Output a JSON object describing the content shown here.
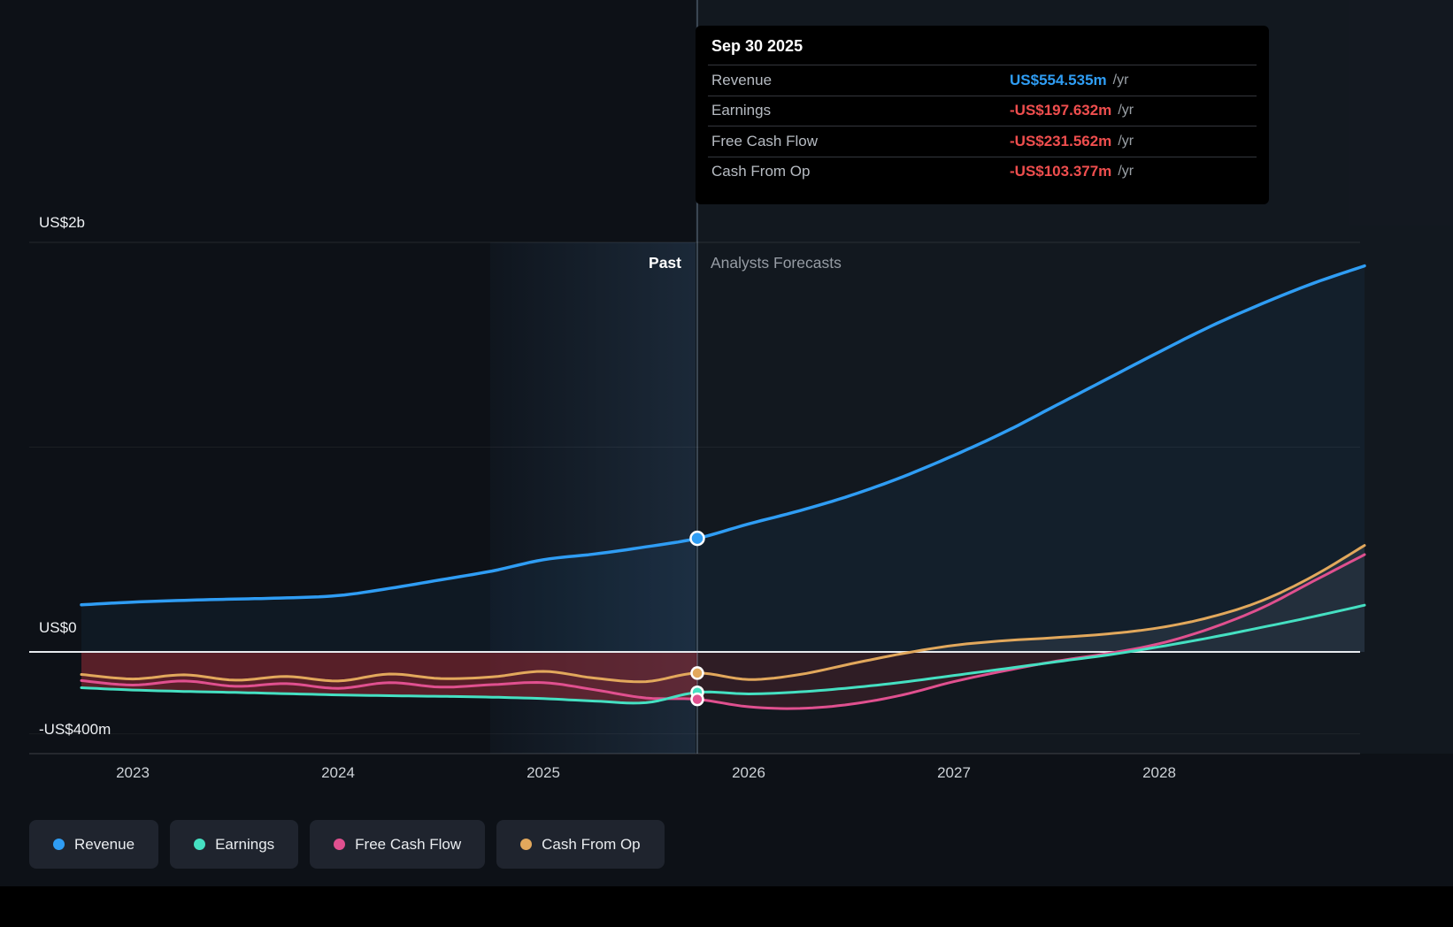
{
  "tooltip": {
    "title": "Sep 30 2025",
    "rows": [
      {
        "label": "Revenue",
        "value": "US$554.535m",
        "suffix": "/yr",
        "color": "#2f9df4"
      },
      {
        "label": "Earnings",
        "value": "-US$197.632m",
        "suffix": "/yr",
        "color": "#ef4e4e"
      },
      {
        "label": "Free Cash Flow",
        "value": "-US$231.562m",
        "suffix": "/yr",
        "color": "#ef4e4e"
      },
      {
        "label": "Cash From Op",
        "value": "-US$103.377m",
        "suffix": "/yr",
        "color": "#ef4e4e"
      }
    ]
  },
  "annotations": {
    "past": "Past",
    "forecast": "Analysts Forecasts"
  },
  "axis": {
    "y_labels": [
      {
        "text": "US$2b",
        "value": 2000
      },
      {
        "text": "US$0",
        "value": 0
      },
      {
        "text": "-US$400m",
        "value": -400
      }
    ],
    "x_labels": [
      "2023",
      "2024",
      "2025",
      "2026",
      "2027",
      "2028"
    ]
  },
  "legend": [
    {
      "label": "Revenue",
      "color": "#2f9df4"
    },
    {
      "label": "Earnings",
      "color": "#45e0c2"
    },
    {
      "label": "Free Cash Flow",
      "color": "#e0508f"
    },
    {
      "label": "Cash From Op",
      "color": "#e2a85c"
    }
  ],
  "chart_data": {
    "type": "line",
    "y_units": "US$ millions",
    "xlim": [
      2022.75,
      2029.0
    ],
    "ylim": [
      -400,
      2000
    ],
    "divider_x": 2025.75,
    "divider_label_left": "Past",
    "divider_label_right": "Analysts Forecasts",
    "highlight_band": [
      2024.75,
      2025.75
    ],
    "x": [
      2022.75,
      2023.0,
      2023.25,
      2023.5,
      2023.75,
      2024.0,
      2024.25,
      2024.5,
      2024.75,
      2025.0,
      2025.25,
      2025.5,
      2025.75,
      2026.0,
      2026.25,
      2026.5,
      2026.75,
      2027.0,
      2027.25,
      2027.5,
      2027.75,
      2028.0,
      2028.25,
      2028.5,
      2028.75,
      2029.0
    ],
    "series": [
      {
        "name": "Revenue",
        "color": "#2f9df4",
        "values": [
          230,
          243,
          252,
          258,
          264,
          275,
          310,
          352,
          395,
          450,
          478,
          513,
          554.535,
          625,
          690,
          765,
          855,
          960,
          1075,
          1205,
          1335,
          1465,
          1590,
          1700,
          1800,
          1885
        ]
      },
      {
        "name": "Earnings",
        "color": "#45e0c2",
        "values": [
          -175,
          -186,
          -193,
          -198,
          -204,
          -210,
          -214,
          -217,
          -221,
          -228,
          -240,
          -248,
          -197.632,
          -205,
          -195,
          -175,
          -148,
          -115,
          -82,
          -48,
          -15,
          25,
          70,
          120,
          172,
          228
        ]
      },
      {
        "name": "Free Cash Flow",
        "color": "#e0508f",
        "values": [
          -140,
          -162,
          -142,
          -168,
          -155,
          -178,
          -150,
          -172,
          -160,
          -150,
          -185,
          -225,
          -231.562,
          -268,
          -276,
          -255,
          -210,
          -145,
          -92,
          -45,
          -8,
          40,
          115,
          215,
          345,
          475
        ]
      },
      {
        "name": "Cash From Op",
        "color": "#e2a85c",
        "values": [
          -110,
          -132,
          -112,
          -138,
          -120,
          -142,
          -108,
          -130,
          -122,
          -95,
          -128,
          -145,
          -103.377,
          -135,
          -110,
          -58,
          -8,
          32,
          55,
          70,
          88,
          118,
          170,
          250,
          370,
          520
        ]
      }
    ],
    "markers": [
      {
        "series": "Revenue",
        "value": 554.535
      },
      {
        "series": "Cash From Op",
        "value": -103.377
      },
      {
        "series": "Earnings",
        "value": -197.632
      },
      {
        "series": "Free Cash Flow",
        "value": -231.562
      }
    ]
  }
}
